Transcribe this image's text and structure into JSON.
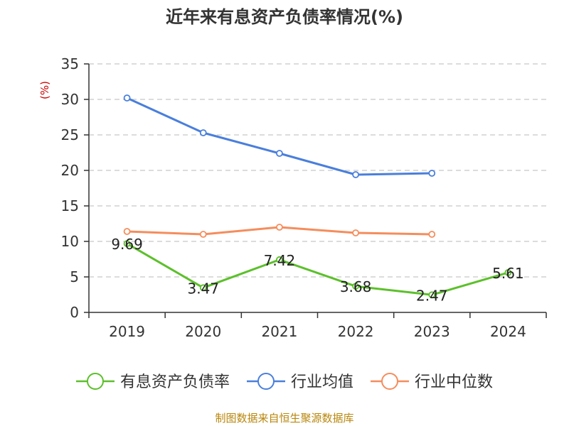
{
  "chart_data": {
    "type": "line",
    "title": "近年来有息资产负债率情况(%)",
    "ylabel": "(%)",
    "categories": [
      "2019",
      "2020",
      "2021",
      "2022",
      "2023",
      "2024"
    ],
    "ylim": [
      0,
      35
    ],
    "yticks": [
      0,
      5,
      10,
      15,
      20,
      25,
      30,
      35
    ],
    "grid": true,
    "legend_position": "bottom",
    "series": [
      {
        "name": "有息资产负债率",
        "color": "#5cc02b",
        "values": [
          9.69,
          3.47,
          7.42,
          3.68,
          2.47,
          5.61
        ],
        "labels": [
          "9.69",
          "3.47",
          "7.42",
          "3.68",
          "2.47",
          "5.61"
        ]
      },
      {
        "name": "行业均值",
        "color": "#4a7fdc",
        "values": [
          30.2,
          25.3,
          22.4,
          19.4,
          19.6,
          null
        ]
      },
      {
        "name": "行业中位数",
        "color": "#f58d5c",
        "values": [
          11.4,
          11.0,
          12.0,
          11.2,
          11.0,
          null
        ]
      }
    ]
  },
  "source": "制图数据来自恒生聚源数据库"
}
